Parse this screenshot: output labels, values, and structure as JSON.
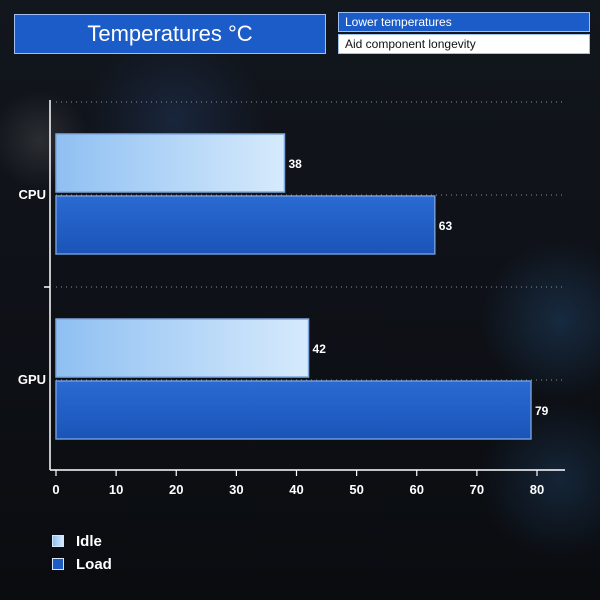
{
  "header": {
    "title": "Temperatures °C",
    "tags": [
      "Lower temperatures",
      "Aid component longevity"
    ]
  },
  "colors": {
    "idle_start": "#8fc0f2",
    "idle_end": "#d6eafc",
    "load": "#1d5cc4",
    "title_bg": "#1c5cc8"
  },
  "chart_data": {
    "type": "bar",
    "orientation": "horizontal",
    "title": "Temperatures °C",
    "categories": [
      "CPU",
      "GPU"
    ],
    "series": [
      {
        "name": "Idle",
        "values": [
          38,
          42
        ]
      },
      {
        "name": "Load",
        "values": [
          63,
          79
        ]
      }
    ],
    "xlim": [
      0,
      80
    ],
    "xticks": [
      0,
      10,
      20,
      30,
      40,
      50,
      60,
      70,
      80
    ],
    "grid": "dotted",
    "legend": "bottom-left"
  }
}
